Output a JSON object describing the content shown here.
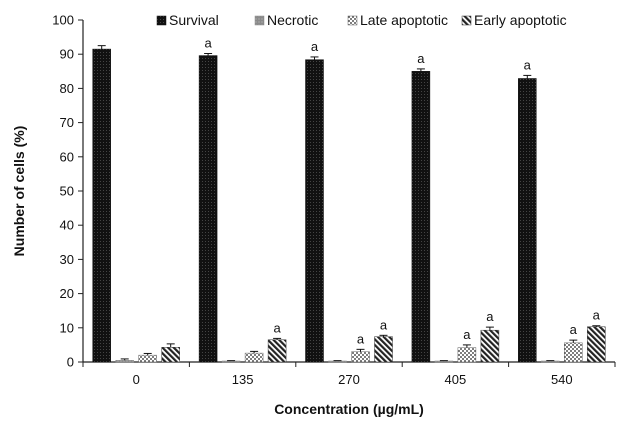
{
  "chart_data": {
    "type": "bar",
    "xlabel": "Concentration (µg/mL)",
    "ylabel": "Number of cells (%)",
    "ylim": [
      0,
      100
    ],
    "yticks": [
      0,
      10,
      20,
      30,
      40,
      50,
      60,
      70,
      80,
      90,
      100
    ],
    "categories": [
      "0",
      "135",
      "270",
      "405",
      "540"
    ],
    "legend_position": "top",
    "grid": false,
    "series": [
      {
        "name": "Survival",
        "values": [
          91.5,
          89.6,
          88.4,
          85.0,
          82.9
        ],
        "errors": [
          1.0,
          0.6,
          0.8,
          0.7,
          0.9
        ],
        "labels": [
          "",
          "a",
          "a",
          "a",
          "a"
        ],
        "pattern": "dark-dots",
        "color": "#111111"
      },
      {
        "name": "Necrotic",
        "values": [
          0.5,
          0.3,
          0.3,
          0.3,
          0.3
        ],
        "errors": [
          0.4,
          0.1,
          0.1,
          0.1,
          0.1
        ],
        "labels": [
          "",
          "",
          "",
          "",
          ""
        ],
        "pattern": "gray",
        "color": "#8a8a8a"
      },
      {
        "name": "Late apoptotic",
        "values": [
          2.0,
          2.6,
          3.0,
          4.2,
          5.6
        ],
        "errors": [
          0.5,
          0.5,
          0.7,
          0.8,
          0.8
        ],
        "labels": [
          "",
          "",
          "a",
          "a",
          "a"
        ],
        "pattern": "speckle",
        "color": "#666666"
      },
      {
        "name": "Early apoptotic",
        "values": [
          4.3,
          6.5,
          7.4,
          9.3,
          10.3
        ],
        "errors": [
          1.0,
          0.4,
          0.4,
          0.9,
          0.3
        ],
        "labels": [
          "",
          "a",
          "a",
          "a",
          "a"
        ],
        "pattern": "diagonal",
        "color": "#333333"
      }
    ]
  }
}
